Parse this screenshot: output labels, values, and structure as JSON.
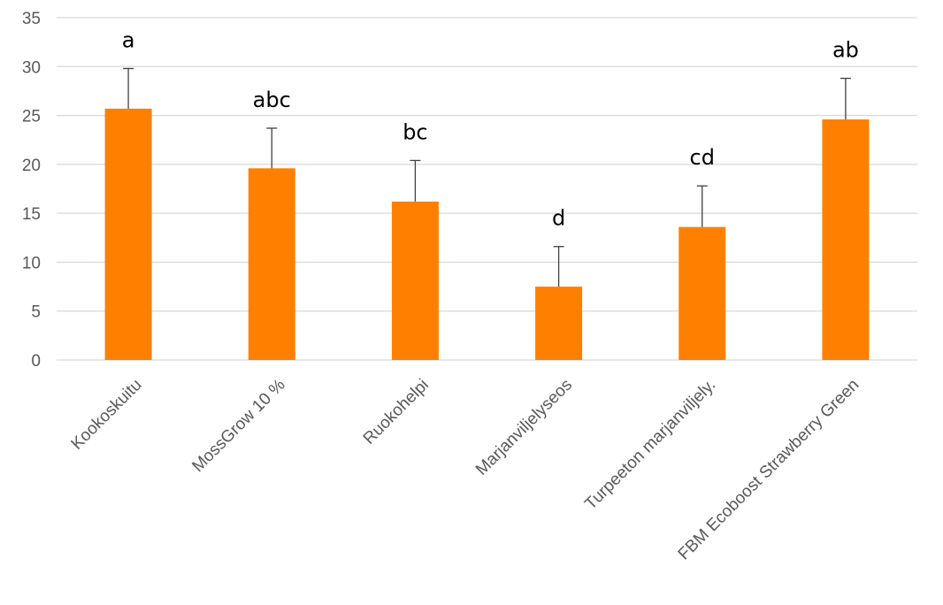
{
  "chart_data": {
    "type": "bar",
    "title": "",
    "xlabel": "",
    "ylabel": "",
    "ylim": [
      0,
      35
    ],
    "yticks": [
      0,
      5,
      10,
      15,
      20,
      25,
      30,
      35
    ],
    "grid": true,
    "categories": [
      "Kookoskuitu",
      "MossGrow 10 %",
      "Ruokohelpi",
      "Marjanviljelyseos",
      "Turpeeton marjanviljely.",
      "FBM Ecoboost Strawberry Green"
    ],
    "values": [
      25.7,
      19.6,
      16.2,
      7.5,
      13.6,
      24.6
    ],
    "error": [
      4.1,
      4.1,
      4.2,
      4.1,
      4.2,
      4.2
    ],
    "significance_labels": [
      "a",
      "abc",
      "bc",
      "d",
      "cd",
      "ab"
    ],
    "bar_color": "#FF8000",
    "grid_color": "#D9D9D9",
    "error_color": "#404040"
  }
}
